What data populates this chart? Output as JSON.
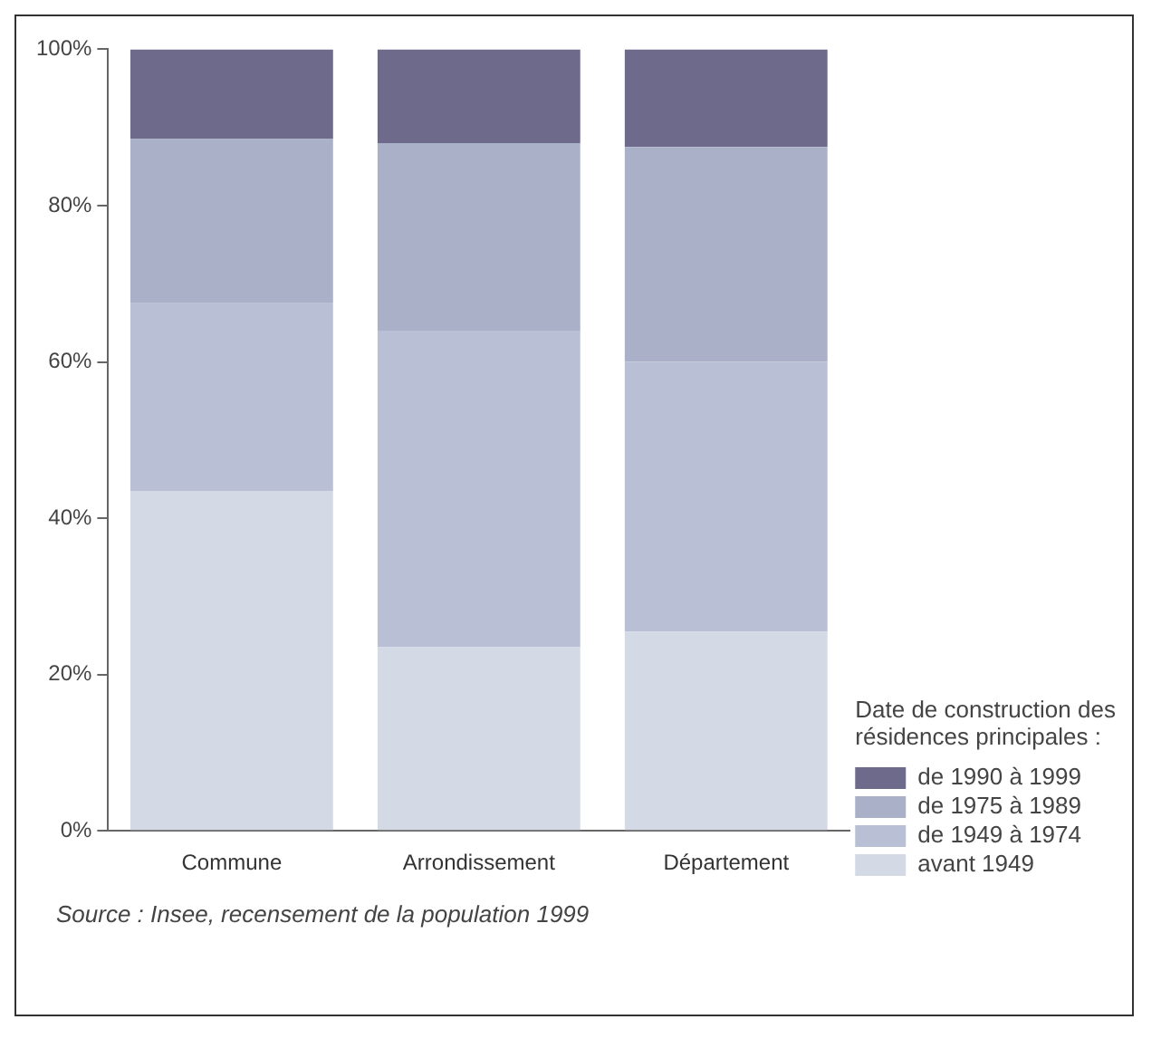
{
  "chart_data": {
    "type": "bar",
    "stacked": true,
    "categories": [
      "Commune",
      "Arrondissement",
      "Département"
    ],
    "series": [
      {
        "name": "avant 1949",
        "color": "#d4d9e6",
        "values": [
          43.5,
          23.5,
          25.5
        ]
      },
      {
        "name": "de 1949 à 1974",
        "color": "#b9c0d5",
        "values": [
          24,
          40.5,
          34.5
        ]
      },
      {
        "name": "de 1975 à 1989",
        "color": "#a9b0c8",
        "values": [
          21,
          24,
          27.5
        ]
      },
      {
        "name": "de 1990 à 1999",
        "color": "#6e6a8c",
        "values": [
          11.5,
          12,
          12.5
        ]
      }
    ],
    "ylim": [
      0,
      100
    ],
    "yticks": [
      {
        "value": 0,
        "label": "0%"
      },
      {
        "value": 20,
        "label": "20%"
      },
      {
        "value": 40,
        "label": "40%"
      },
      {
        "value": 60,
        "label": "60%"
      },
      {
        "value": 80,
        "label": "80%"
      },
      {
        "value": 100,
        "label": "100%"
      }
    ],
    "legend": "bottom right",
    "legend_title": "Date de construction des résidences principales :",
    "annotations": [
      "Source : Insee, recensement de la population 1999"
    ]
  }
}
